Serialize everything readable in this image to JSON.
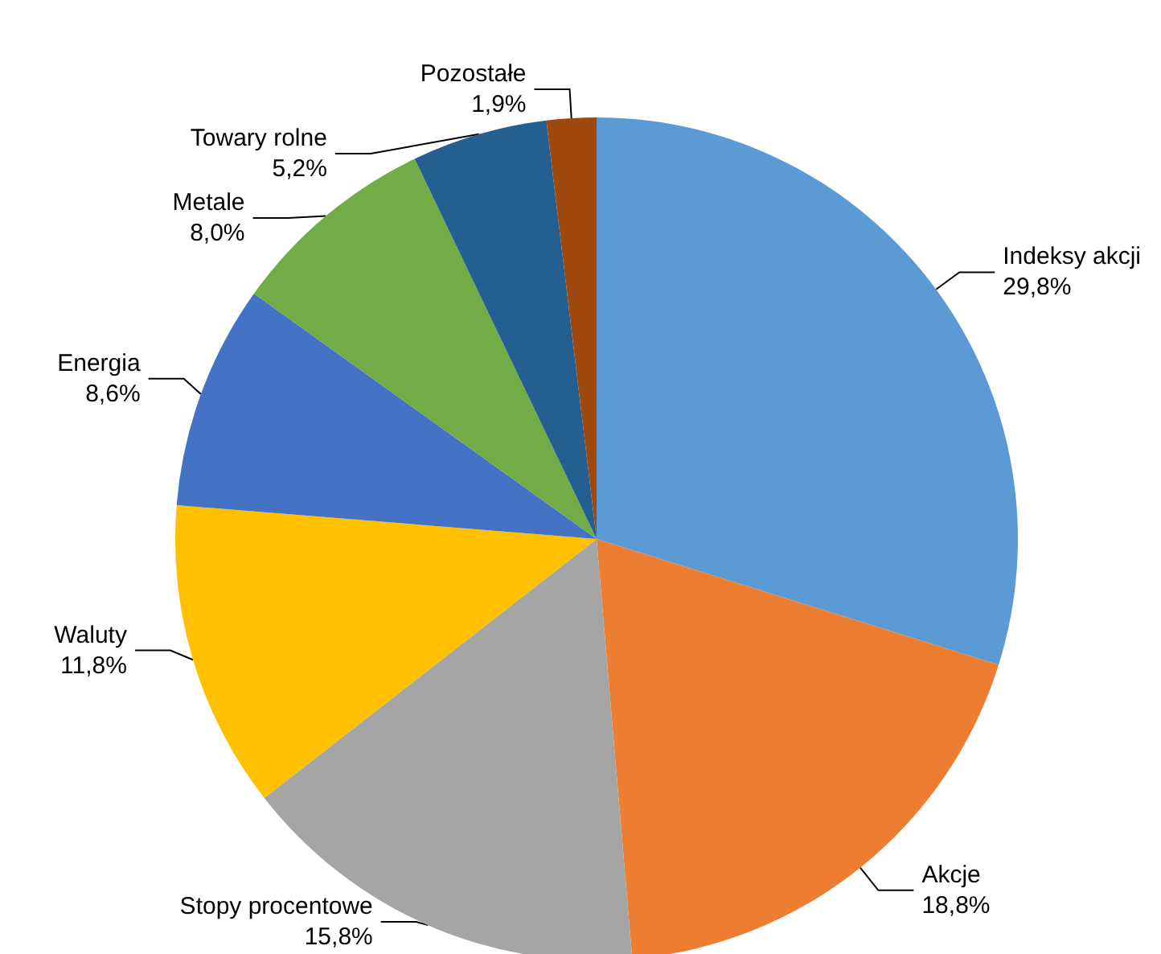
{
  "chart_data": {
    "type": "pie",
    "categories": [
      "Indeksy akcji",
      "Akcje",
      "Stopy procentowe",
      "Waluty",
      "Energia",
      "Metale",
      "Towary rolne",
      "Pozostałe"
    ],
    "values": [
      29.8,
      18.8,
      15.8,
      11.8,
      8.6,
      8.0,
      5.2,
      1.9
    ],
    "colors": [
      "#5b9bd5",
      "#ed7d31",
      "#a5a5a5",
      "#ffc000",
      "#4472c4",
      "#70ad47",
      "#255e91",
      "#9e480e"
    ],
    "value_labels": [
      "29,8%",
      "18,8%",
      "15,8%",
      "11,8%",
      "8,6%",
      "8,0%",
      "5,2%",
      "1,9%"
    ],
    "legend": false
  }
}
